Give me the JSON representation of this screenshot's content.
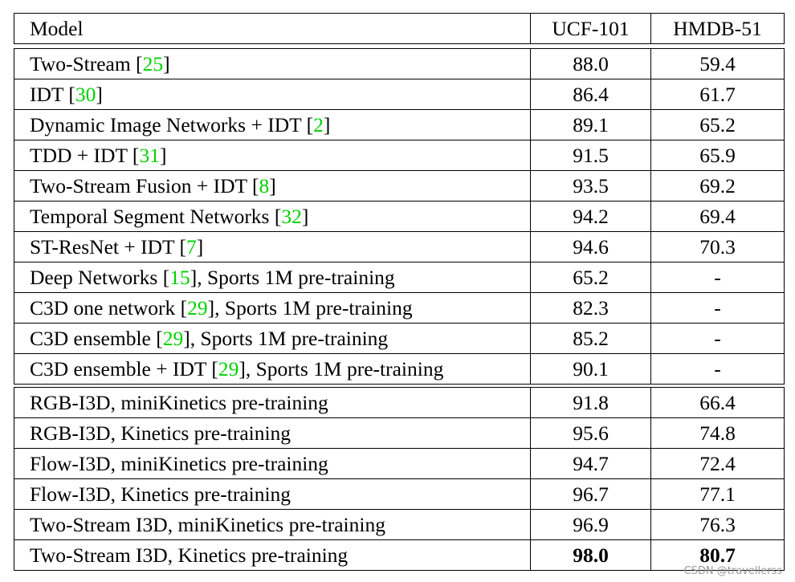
{
  "header": {
    "model": "Model",
    "col1": "UCF-101",
    "col2": "HMDB-51"
  },
  "groups": [
    {
      "rows": [
        {
          "pre": "Two-Stream [",
          "ref": "25",
          "post": "]",
          "ucf": "88.0",
          "hmdb": "59.4"
        },
        {
          "pre": "IDT [",
          "ref": "30",
          "post": "]",
          "ucf": "86.4",
          "hmdb": "61.7"
        },
        {
          "pre": "Dynamic Image Networks + IDT [",
          "ref": "2",
          "post": "]",
          "ucf": "89.1",
          "hmdb": "65.2"
        },
        {
          "pre": "TDD + IDT [",
          "ref": "31",
          "post": "]",
          "ucf": "91.5",
          "hmdb": "65.9"
        },
        {
          "pre": "Two-Stream Fusion + IDT [",
          "ref": "8",
          "post": "]",
          "ucf": "93.5",
          "hmdb": "69.2"
        },
        {
          "pre": "Temporal Segment Networks [",
          "ref": "32",
          "post": "]",
          "ucf": "94.2",
          "hmdb": "69.4"
        },
        {
          "pre": "ST-ResNet + IDT [",
          "ref": "7",
          "post": "]",
          "ucf": "94.6",
          "hmdb": "70.3"
        }
      ]
    },
    {
      "rows": [
        {
          "pre": "Deep Networks [",
          "ref": "15",
          "post": "], Sports 1M pre-training",
          "ucf": "65.2",
          "hmdb": "-"
        },
        {
          "pre": "C3D one network [",
          "ref": "29",
          "post": "], Sports 1M pre-training",
          "ucf": "82.3",
          "hmdb": "-"
        },
        {
          "pre": "C3D ensemble [",
          "ref": "29",
          "post": "], Sports 1M pre-training",
          "ucf": "85.2",
          "hmdb": "-"
        },
        {
          "pre": "C3D ensemble + IDT [",
          "ref": "29",
          "post": "], Sports 1M pre-training",
          "ucf": "90.1",
          "hmdb": "-"
        }
      ]
    },
    {
      "rows": [
        {
          "pre": "RGB-I3D, miniKinetics pre-training",
          "ref": "",
          "post": "",
          "ucf": "91.8",
          "hmdb": "66.4"
        },
        {
          "pre": "RGB-I3D, Kinetics pre-training",
          "ref": "",
          "post": "",
          "ucf": "95.6",
          "hmdb": "74.8"
        },
        {
          "pre": "Flow-I3D, miniKinetics pre-training",
          "ref": "",
          "post": "",
          "ucf": "94.7",
          "hmdb": "72.4"
        },
        {
          "pre": "Flow-I3D, Kinetics pre-training",
          "ref": "",
          "post": "",
          "ucf": "96.7",
          "hmdb": "77.1"
        },
        {
          "pre": "Two-Stream I3D, miniKinetics pre-training",
          "ref": "",
          "post": "",
          "ucf": "96.9",
          "hmdb": "76.3"
        },
        {
          "pre": "Two-Stream I3D, Kinetics pre-training",
          "ref": "",
          "post": "",
          "ucf": "98.0",
          "hmdb": "80.7",
          "bold": true
        }
      ]
    }
  ],
  "watermark": "CSDN @travellerss",
  "colors": {
    "reference_link": "#00d100",
    "border": "#000000"
  }
}
